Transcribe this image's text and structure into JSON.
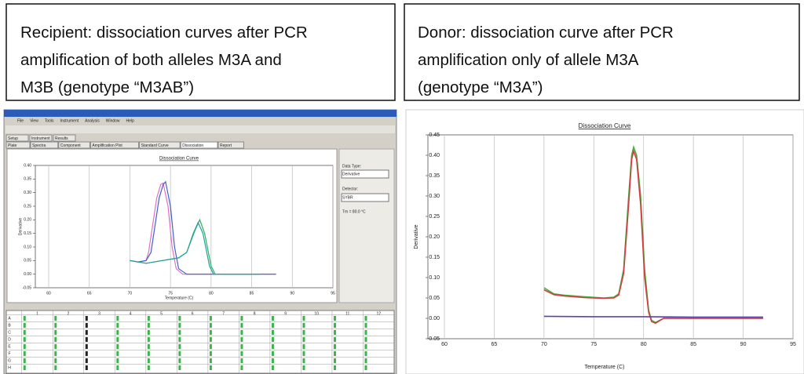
{
  "captions": {
    "left": [
      "Recipient: dissociation curves after PCR",
      "amplification of both alleles M3A and",
      "M3B (genotype “M3AB”)"
    ],
    "right": [
      "Donor: dissociation curve after PCR",
      "amplification only of allele M3A",
      "(genotype “M3A”)"
    ]
  },
  "left_window": {
    "menu": [
      "File",
      "View",
      "Tools",
      "Instrument",
      "Analysis",
      "Window",
      "Help"
    ],
    "tabs": [
      "Setup",
      "Instrument",
      "Results"
    ],
    "subtabs": [
      "Plate",
      "Spectra",
      "Component",
      "Amplification Plot",
      "Standard Curve",
      "Dissociation",
      "Report"
    ],
    "side": [
      "Data Type:",
      "Derivative",
      "Detector:",
      "SYBR",
      "Tm = 80.0 °C"
    ],
    "plate_columns": [
      "1",
      "2",
      "3",
      "4",
      "5",
      "6",
      "7",
      "8",
      "9",
      "10",
      "11",
      "12"
    ],
    "plate_rows": [
      "A",
      "B",
      "C",
      "D",
      "E",
      "F",
      "G",
      "H"
    ]
  },
  "chart_data": [
    {
      "type": "line",
      "title": "Dissociation Curve",
      "x_label": "Temperature (C)",
      "y_label": "Derivative",
      "xlim": [
        60,
        95
      ],
      "ylim": [
        -0.05,
        0.4
      ],
      "xticks": [
        60,
        65,
        70,
        75,
        80,
        85,
        90,
        95
      ],
      "yticks": [
        -0.05,
        {
          "value": 0,
          "label": "0.00"
        },
        0.05,
        {
          "value": 0.1,
          "label": "0.10"
        },
        0.15,
        {
          "value": 0.2,
          "label": "0.20"
        },
        0.25,
        {
          "value": 0.3,
          "label": "0.30"
        },
        0.35,
        {
          "value": 0.4,
          "label": "0.40"
        }
      ],
      "grid": "x",
      "series": [
        {
          "color": "#e070c8",
          "x": [
            70,
            71,
            72,
            72.3,
            72.8,
            73.3,
            73.8,
            74.1,
            74.7,
            75.2,
            75.7,
            76.5,
            80,
            88
          ],
          "values": [
            0.05,
            0.045,
            0.05,
            0.08,
            0.18,
            0.28,
            0.33,
            0.335,
            0.25,
            0.1,
            0.02,
            0,
            0,
            0
          ]
        },
        {
          "color": "#4060d0",
          "x": [
            70,
            71,
            72,
            72.6,
            73.1,
            73.6,
            74.1,
            74.4,
            75,
            75.5,
            76,
            77,
            80,
            88
          ],
          "values": [
            0.05,
            0.045,
            0.05,
            0.08,
            0.18,
            0.28,
            0.33,
            0.34,
            0.25,
            0.1,
            0.02,
            0,
            0,
            0
          ]
        },
        {
          "color": "#30b060",
          "x": [
            70,
            72,
            74,
            76,
            77,
            78,
            78.6,
            79.2,
            80,
            80.5,
            86
          ],
          "values": [
            0.05,
            0.04,
            0.05,
            0.06,
            0.08,
            0.16,
            0.2,
            0.15,
            0.03,
            0,
            0
          ]
        },
        {
          "color": "#20a0a0",
          "x": [
            70,
            72,
            74,
            76,
            77,
            77.8,
            78.4,
            79,
            79.8,
            80.3,
            86
          ],
          "values": [
            0.05,
            0.04,
            0.05,
            0.06,
            0.08,
            0.15,
            0.19,
            0.15,
            0.03,
            0,
            0
          ]
        }
      ]
    },
    {
      "type": "line",
      "title": "Dissociation Curve",
      "x_label": "Temperature (C)",
      "y_label": "Derivative",
      "xlim": [
        60,
        95
      ],
      "ylim": [
        -0.05,
        0.45
      ],
      "xticks": [
        60,
        65,
        70,
        75,
        80,
        85,
        90,
        95
      ],
      "yticks": [
        -0.05,
        {
          "value": 0,
          "label": "0.00"
        },
        0.05,
        {
          "value": 0.1,
          "label": "0.10"
        },
        0.15,
        {
          "value": 0.2,
          "label": "0.20"
        },
        0.25,
        {
          "value": 0.3,
          "label": "0.30"
        },
        0.35,
        {
          "value": 0.4,
          "label": "0.40"
        },
        0.45
      ],
      "grid": "x",
      "series": [
        {
          "color": "#40b040",
          "x": [
            70,
            71,
            72,
            74,
            76,
            77,
            77.5,
            78,
            78.5,
            78.8,
            79,
            79.3,
            79.7,
            80.1,
            80.5,
            80.8,
            81.2,
            82,
            85,
            92
          ],
          "values": [
            0.075,
            0.06,
            0.057,
            0.053,
            0.05,
            0.052,
            0.06,
            0.12,
            0.3,
            0.4,
            0.42,
            0.4,
            0.3,
            0.12,
            0.02,
            -0.005,
            -0.01,
            0,
            0,
            0
          ]
        },
        {
          "color": "#d04040",
          "x": [
            70,
            71,
            72,
            74,
            76,
            77,
            77.5,
            78,
            78.5,
            78.8,
            79,
            79.3,
            79.7,
            80.1,
            80.5,
            80.8,
            81.2,
            82,
            85,
            92
          ],
          "values": [
            0.07,
            0.058,
            0.055,
            0.051,
            0.049,
            0.05,
            0.057,
            0.11,
            0.28,
            0.39,
            0.41,
            0.39,
            0.28,
            0.1,
            0.015,
            -0.008,
            -0.012,
            0,
            0,
            0
          ]
        },
        {
          "color": "#6040b0",
          "x": [
            70,
            75,
            80,
            85,
            92
          ],
          "values": [
            0.005,
            0.004,
            0.004,
            0.003,
            0.003
          ]
        }
      ]
    }
  ]
}
